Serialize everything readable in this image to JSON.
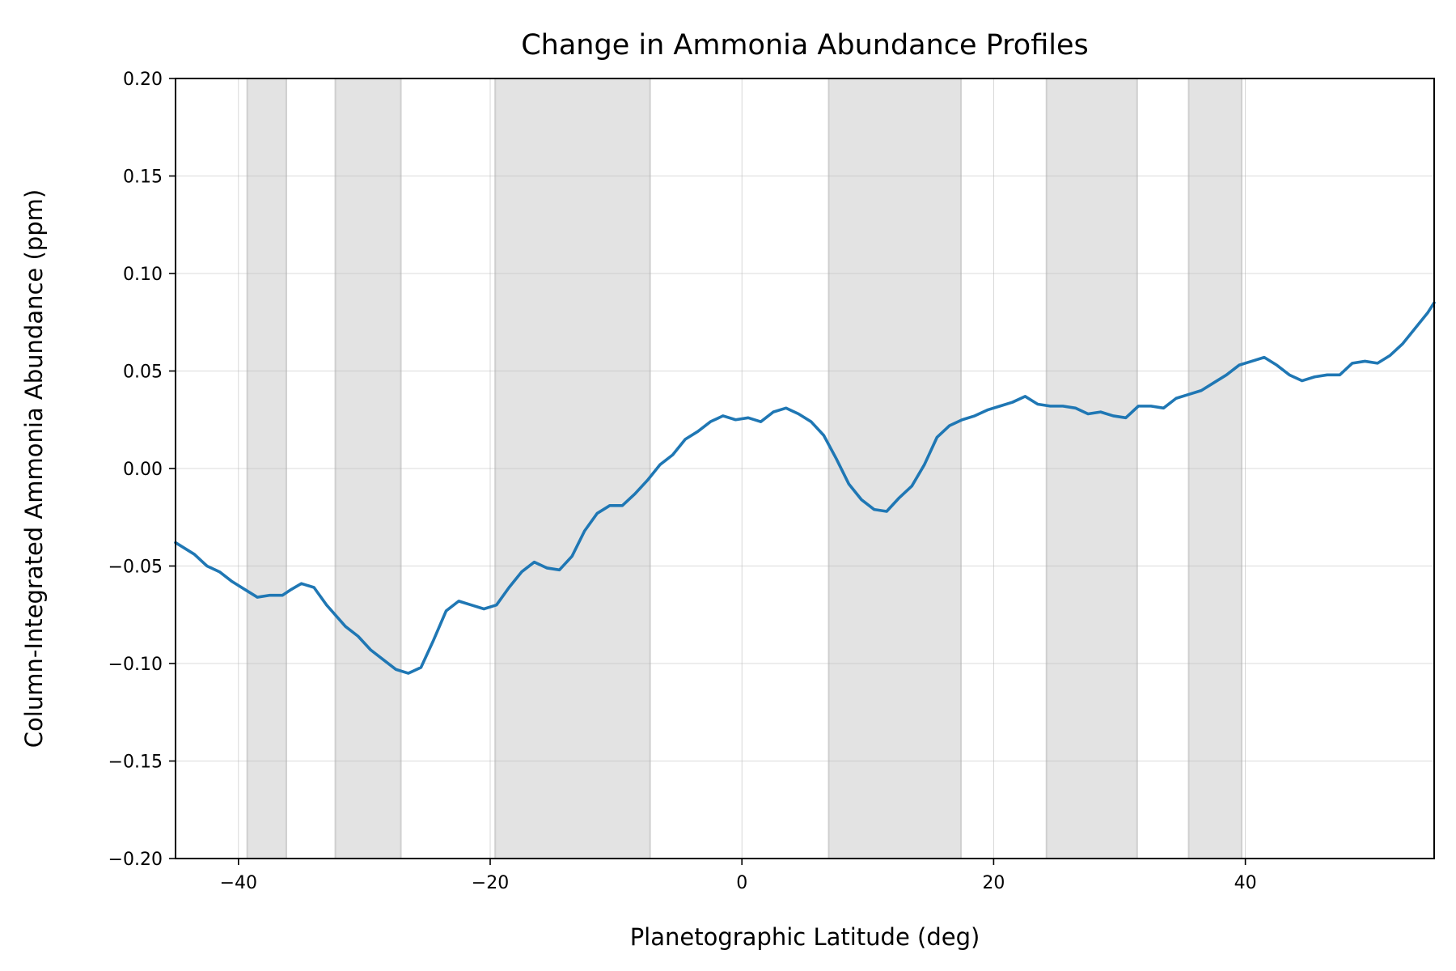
{
  "chart_data": {
    "type": "line",
    "title": "Change in Ammonia Abundance Profiles",
    "xlabel": "Planetographic Latitude (deg)",
    "ylabel": "Column-Integrated Ammonia Abundance (ppm)",
    "xlim": [
      -45,
      55
    ],
    "ylim": [
      -0.2,
      0.2
    ],
    "xticks": [
      -40,
      -20,
      0,
      20,
      40
    ],
    "xtick_labels": [
      "−40",
      "−20",
      "0",
      "20",
      "40"
    ],
    "yticks": [
      -0.2,
      -0.15,
      -0.1,
      -0.05,
      0.0,
      0.05,
      0.1,
      0.15,
      0.2
    ],
    "ytick_labels": [
      "−0.20",
      "−0.15",
      "−0.10",
      "−0.05",
      "0.00",
      "0.05",
      "0.10",
      "0.15",
      "0.20"
    ],
    "grid": true,
    "line_color": "#1f77b4",
    "band_color": "#e3e3e3",
    "shaded_bands": [
      [
        -39.3,
        -36.2
      ],
      [
        -32.3,
        -27.1
      ],
      [
        -19.6,
        -7.3
      ],
      [
        6.9,
        17.4
      ],
      [
        24.2,
        31.4
      ],
      [
        35.5,
        39.7
      ]
    ],
    "series": [
      {
        "x": [
          -45.0,
          -43.5,
          -42.5,
          -41.5,
          -40.5,
          -39.5,
          -38.5,
          -37.5,
          -36.5,
          -35.8,
          -35.0,
          -34.0,
          -33.0,
          -31.5,
          -30.5,
          -29.5,
          -28.5,
          -27.5,
          -26.5,
          -25.5,
          -24.5,
          -23.5,
          -22.5,
          -21.5,
          -20.5,
          -19.5,
          -18.5,
          -17.5,
          -16.5,
          -15.5,
          -14.5,
          -13.5,
          -12.5,
          -11.5,
          -10.5,
          -9.5,
          -8.5,
          -7.5,
          -6.5,
          -5.5,
          -4.5,
          -3.5,
          -2.5,
          -1.5,
          -0.5,
          0.5,
          1.5,
          2.5,
          3.5,
          4.5,
          5.5,
          6.5,
          7.5,
          8.5,
          9.5,
          10.5,
          11.5,
          12.5,
          13.5,
          14.5,
          15.5,
          16.5,
          17.5,
          18.5,
          19.5,
          20.5,
          21.5,
          22.5,
          23.5,
          24.5,
          25.5,
          26.5,
          27.5,
          28.5,
          29.5,
          30.5,
          31.5,
          32.5,
          33.5,
          34.5,
          35.5,
          36.5,
          37.5,
          38.5,
          39.5,
          40.5,
          41.5,
          42.5,
          43.5,
          44.5,
          45.5,
          46.5,
          47.5,
          48.5,
          49.5,
          50.5,
          51.5,
          52.5,
          53.5,
          54.5,
          55.0
        ],
        "y": [
          -0.038,
          -0.044,
          -0.05,
          -0.053,
          -0.058,
          -0.062,
          -0.066,
          -0.065,
          -0.065,
          -0.062,
          -0.059,
          -0.061,
          -0.07,
          -0.081,
          -0.086,
          -0.093,
          -0.098,
          -0.103,
          -0.105,
          -0.102,
          -0.088,
          -0.073,
          -0.068,
          -0.07,
          -0.072,
          -0.07,
          -0.061,
          -0.053,
          -0.048,
          -0.051,
          -0.052,
          -0.045,
          -0.032,
          -0.023,
          -0.019,
          -0.019,
          -0.013,
          -0.006,
          0.002,
          0.007,
          0.015,
          0.019,
          0.024,
          0.027,
          0.025,
          0.026,
          0.024,
          0.029,
          0.031,
          0.028,
          0.024,
          0.017,
          0.005,
          -0.008,
          -0.016,
          -0.021,
          -0.022,
          -0.015,
          -0.009,
          0.002,
          0.016,
          0.022,
          0.025,
          0.027,
          0.03,
          0.032,
          0.034,
          0.037,
          0.033,
          0.032,
          0.032,
          0.031,
          0.028,
          0.029,
          0.027,
          0.026,
          0.032,
          0.032,
          0.031,
          0.036,
          0.038,
          0.04,
          0.044,
          0.048,
          0.053,
          0.055,
          0.057,
          0.053,
          0.048,
          0.045,
          0.047,
          0.048,
          0.048,
          0.054,
          0.055,
          0.054,
          0.058,
          0.064,
          0.072,
          0.08,
          0.085
        ]
      }
    ]
  }
}
